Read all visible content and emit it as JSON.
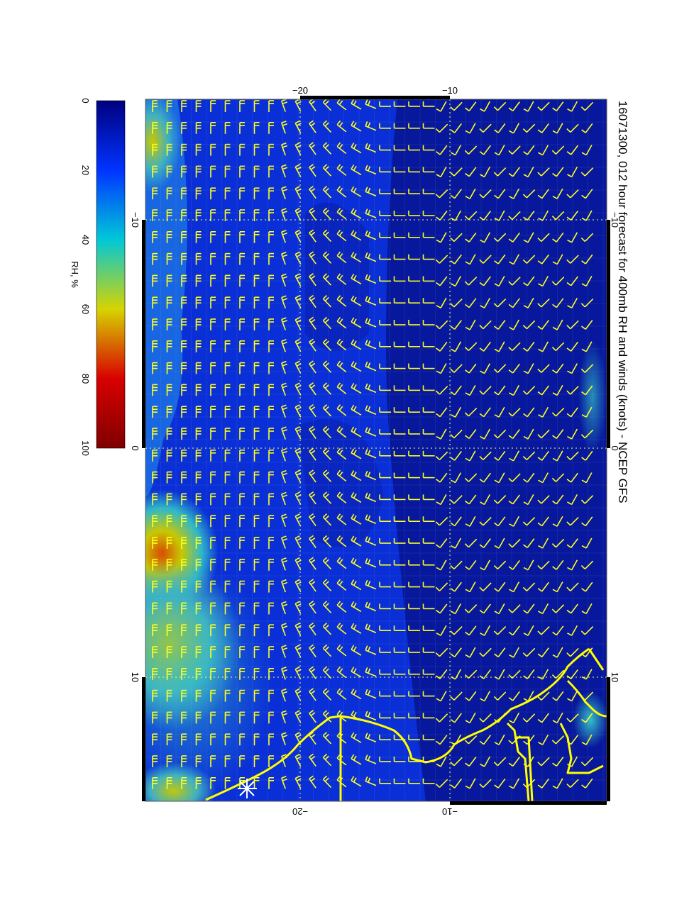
{
  "title": "16071300, 012 hour forecast for 400mb RH and winds (knots) - NCEP GFS",
  "colorbar": {
    "label": "RH, %",
    "ticks": [
      "0",
      "20",
      "40",
      "60",
      "80",
      "100"
    ],
    "stops": [
      "#00007f",
      "#0033ff",
      "#00c8d8",
      "#d6d400",
      "#d80000",
      "#7f0000"
    ]
  },
  "axes": {
    "top_ticks": [
      "−20",
      "−10"
    ],
    "bottom_ticks": [
      "−20",
      "−10"
    ],
    "left_ticks": [
      "−10",
      "0",
      "10"
    ],
    "right_ticks": [
      "−10",
      "0",
      "10"
    ]
  },
  "map": {
    "background_color": "#0a2fd6",
    "barb_color": "#ffff22",
    "coastline_color": "#ffff00",
    "marker": "asterisk"
  }
}
